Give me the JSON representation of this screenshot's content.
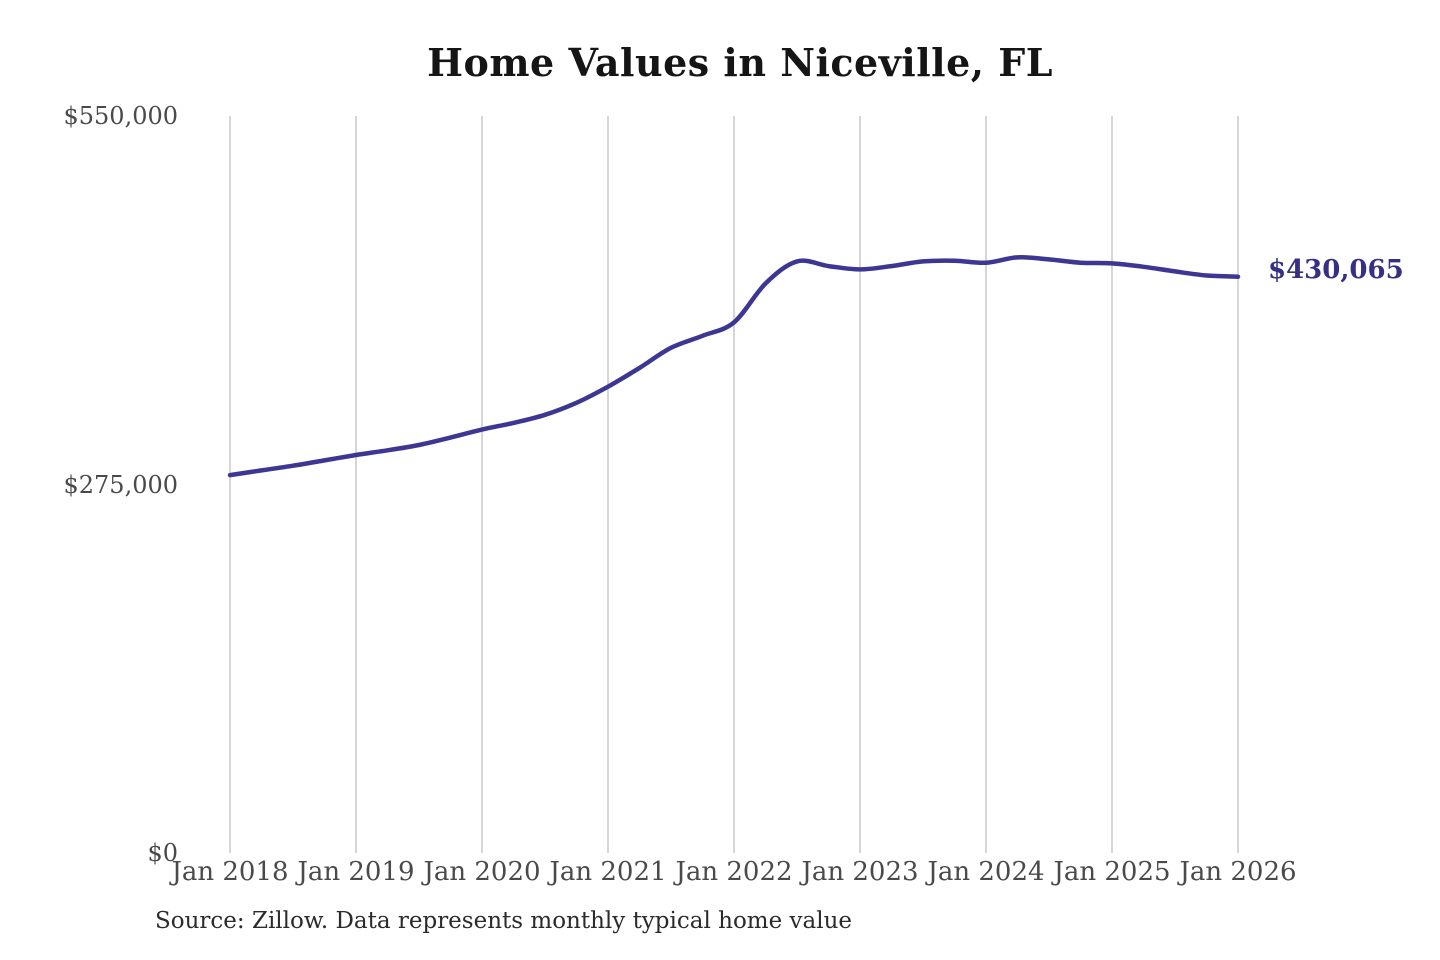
{
  "page": {
    "background_color": "#ffffff"
  },
  "chart": {
    "title": "Home Values in Niceville, FL",
    "source_note": "Source: Zillow. Data represents monthly typical home value"
  },
  "chart_data": {
    "type": "line",
    "title": "Home Values in Niceville, FL",
    "xlabel": "",
    "ylabel": "",
    "ylim": [
      0,
      550000
    ],
    "grid": "vertical-only",
    "legend": "none",
    "series_name": "Monthly typical home value",
    "line_color": "#3d3793",
    "gridline_color": "#c9c9c9",
    "tick_label_color": "#4a4a4a",
    "end_label": "$430,065",
    "end_label_color": "#363084",
    "end_value": 430065,
    "y_ticks": [
      {
        "label": "$550,000",
        "value": 550000
      },
      {
        "label": "$275,000",
        "value": 275000
      },
      {
        "label": "$0",
        "value": 0
      }
    ],
    "x_tick_labels": [
      "Jan 2018",
      "Jan 2019",
      "Jan 2020",
      "Jan 2021",
      "Jan 2022",
      "Jan 2023",
      "Jan 2024",
      "Jan 2025",
      "Jan 2026"
    ],
    "categories": [
      "Jan 2018",
      "Apr 2018",
      "Jul 2018",
      "Oct 2018",
      "Jan 2019",
      "Apr 2019",
      "Jul 2019",
      "Oct 2019",
      "Jan 2020",
      "Apr 2020",
      "Jul 2020",
      "Oct 2020",
      "Jan 2021",
      "Apr 2021",
      "Jul 2021",
      "Oct 2021",
      "Jan 2022",
      "Apr 2022",
      "Jul 2022",
      "Oct 2022",
      "Jan 2023",
      "Apr 2023",
      "Jul 2023",
      "Oct 2023",
      "Jan 2024",
      "Apr 2024",
      "Jul 2024",
      "Oct 2024",
      "Jan 2025",
      "Apr 2025",
      "Jul 2025",
      "Oct 2025",
      "Jan 2026"
    ],
    "values": [
      282000,
      285500,
      289000,
      293000,
      297000,
      300500,
      304500,
      310000,
      316000,
      321000,
      327000,
      336000,
      348000,
      362000,
      377000,
      386000,
      396000,
      425000,
      441500,
      438000,
      435500,
      438000,
      441500,
      442000,
      440500,
      444500,
      443000,
      440500,
      440000,
      437500,
      434000,
      431000,
      430065
    ]
  }
}
